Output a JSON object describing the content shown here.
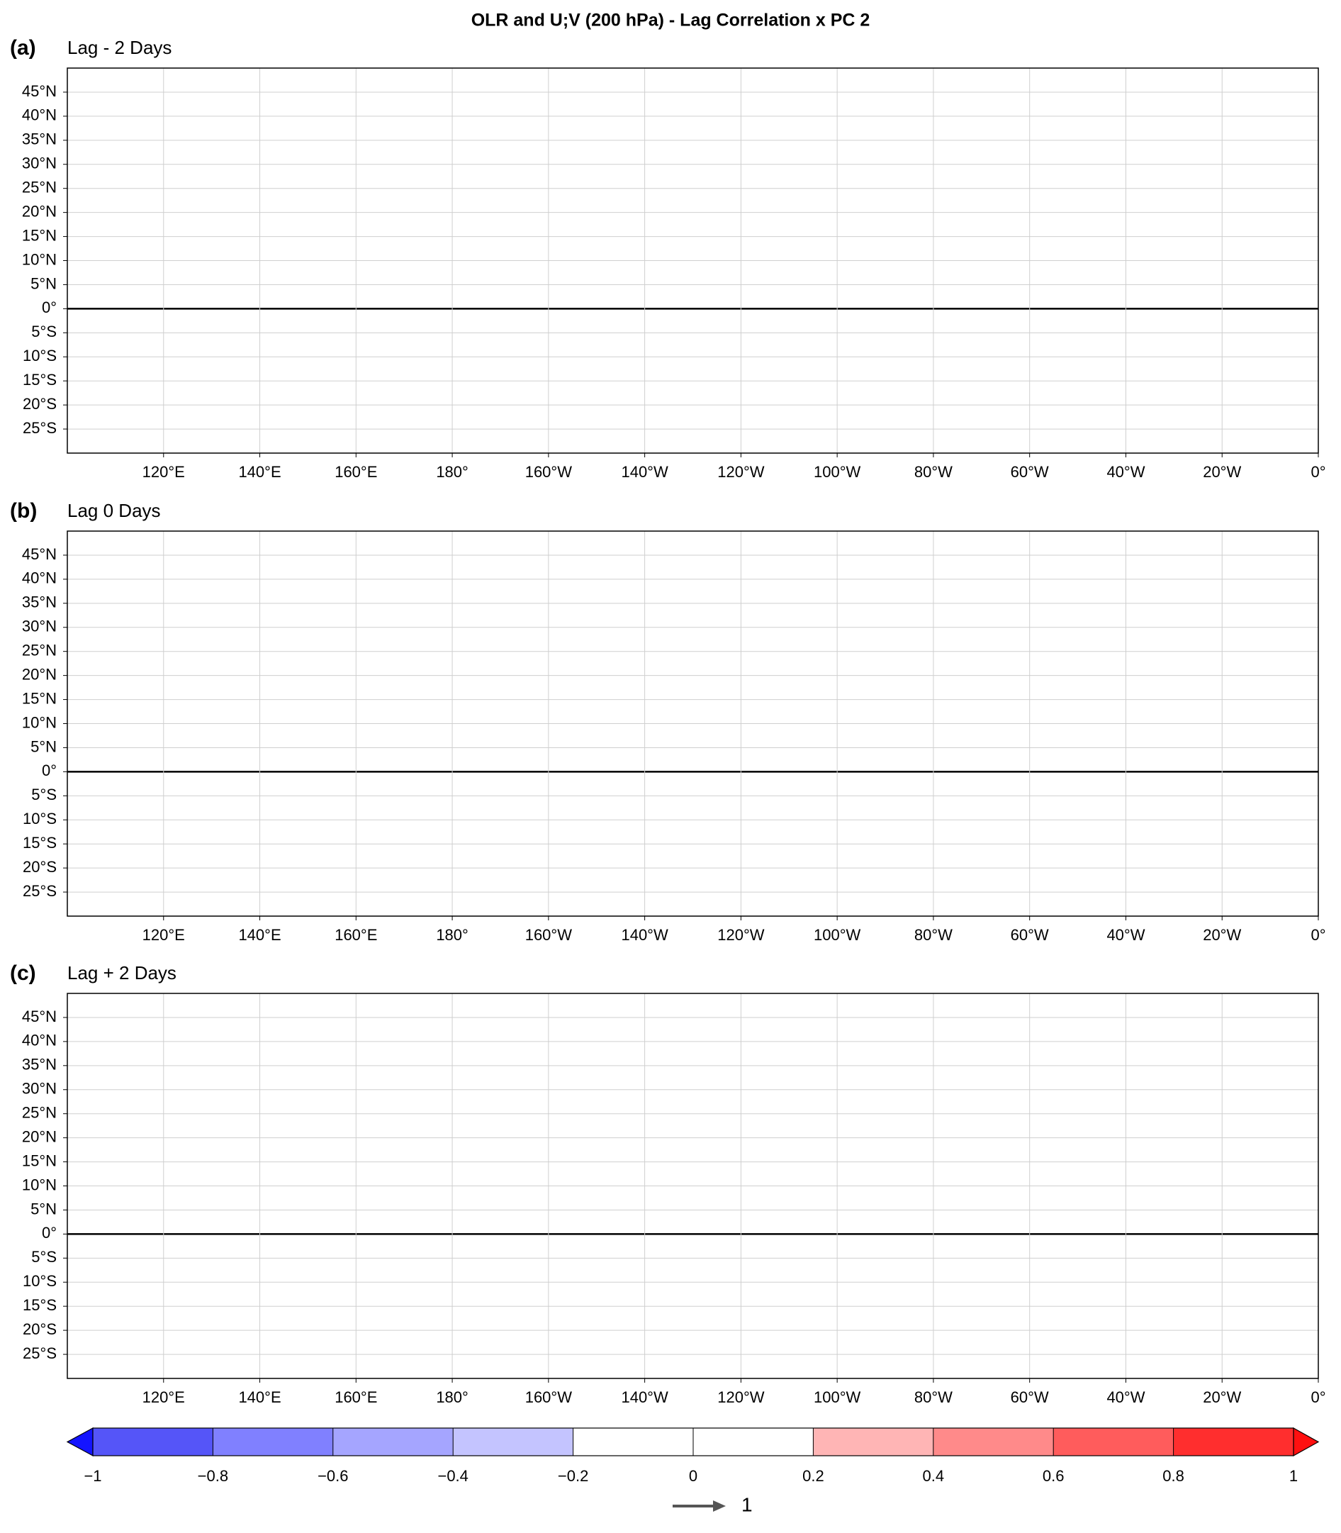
{
  "chart_data": {
    "type": "map",
    "title": "OLR and U;V (200 hPa) - Lag Correlation x PC 2",
    "xlim": [
      100,
      360
    ],
    "xticks": [
      {
        "value": 120,
        "label": "120°E"
      },
      {
        "value": 140,
        "label": "140°E"
      },
      {
        "value": 160,
        "label": "160°E"
      },
      {
        "value": 180,
        "label": "180°"
      },
      {
        "value": 200,
        "label": "160°W"
      },
      {
        "value": 220,
        "label": "140°W"
      },
      {
        "value": 240,
        "label": "120°W"
      },
      {
        "value": 260,
        "label": "100°W"
      },
      {
        "value": 280,
        "label": "80°W"
      },
      {
        "value": 300,
        "label": "60°W"
      },
      {
        "value": 320,
        "label": "40°W"
      },
      {
        "value": 340,
        "label": "20°W"
      },
      {
        "value": 360,
        "label": "0°"
      }
    ],
    "ylim": [
      -30,
      50
    ],
    "yticks": [
      {
        "value": 45,
        "label": "45°N"
      },
      {
        "value": 40,
        "label": "40°N"
      },
      {
        "value": 35,
        "label": "35°N"
      },
      {
        "value": 30,
        "label": "30°N"
      },
      {
        "value": 25,
        "label": "25°N"
      },
      {
        "value": 20,
        "label": "20°N"
      },
      {
        "value": 15,
        "label": "15°N"
      },
      {
        "value": 10,
        "label": "10°N"
      },
      {
        "value": 5,
        "label": "5°N"
      },
      {
        "value": 0,
        "label": "0°"
      },
      {
        "value": -5,
        "label": "5°S"
      },
      {
        "value": -10,
        "label": "10°S"
      },
      {
        "value": -15,
        "label": "15°S"
      },
      {
        "value": -20,
        "label": "20°S"
      },
      {
        "value": -25,
        "label": "25°S"
      }
    ],
    "grid": true,
    "panels": [
      {
        "label": "(a)",
        "subtitle": "Lag - 2 Days"
      },
      {
        "label": "(b)",
        "subtitle": "Lag 0 Days"
      },
      {
        "label": "(c)",
        "subtitle": "Lag + 2 Days"
      }
    ],
    "colorbar": {
      "ticks": [
        {
          "value": -1,
          "label": "−1"
        },
        {
          "value": -0.8,
          "label": "−0.8"
        },
        {
          "value": -0.6,
          "label": "−0.6"
        },
        {
          "value": -0.4,
          "label": "−0.4"
        },
        {
          "value": -0.2,
          "label": "−0.2"
        },
        0,
        0.2,
        0.4,
        0.6,
        0.8,
        1
      ],
      "colors": [
        "#1414ff",
        "#5555f8",
        "#8080ff",
        "#a5a5ff",
        "#c4c4ff",
        "#ffffff",
        "#ffffff",
        "#ffb5b5",
        "#ff8a8a",
        "#ff5c5c",
        "#ff2e2e",
        "#ff1010"
      ]
    },
    "reference_vector": 1
  }
}
